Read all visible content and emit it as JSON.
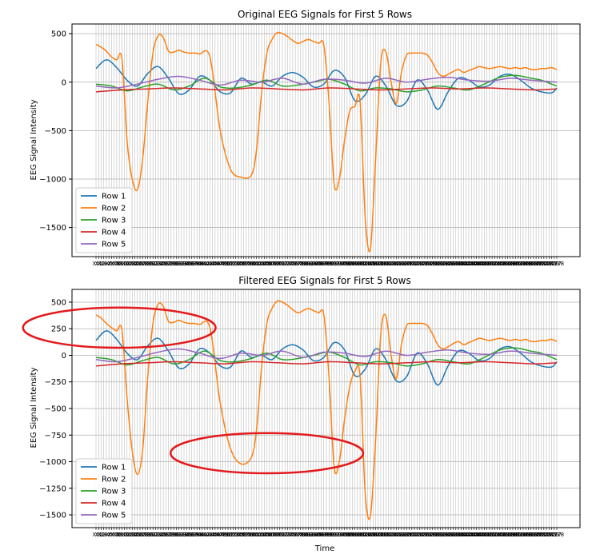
{
  "figure": {
    "colors": {
      "Row 1": "#1f77b4",
      "Row 2": "#ff7f0e",
      "Row 3": "#2ca02c",
      "Row 4": "#d62728",
      "Row 5": "#9467bd",
      "grid": "#b0b0b0",
      "annotation": "#e31a1c"
    }
  },
  "chart_data": [
    {
      "type": "line",
      "title": "Original EEG Signals for First 5 Rows",
      "xlabel": "",
      "ylabel": "EEG Signal Intensity",
      "ylim": [
        -1800,
        600
      ],
      "yticks": [
        500,
        0,
        -500,
        -1000,
        -1500
      ],
      "grid": true,
      "legend_position": "lower-left",
      "x_count": 179,
      "series": [
        {
          "name": "Row 1",
          "x": [
            0,
            4,
            8,
            12,
            16,
            20,
            24,
            28,
            32,
            36,
            40,
            44,
            48,
            52,
            56,
            60,
            64,
            68,
            72,
            76,
            80,
            84,
            88,
            92,
            96,
            100,
            104,
            108,
            112,
            116,
            120,
            124,
            128,
            132,
            136,
            140,
            144,
            148,
            152,
            156,
            160,
            164,
            168,
            172,
            176,
            178
          ],
          "values": [
            140,
            230,
            150,
            20,
            -40,
            90,
            160,
            40,
            -120,
            -80,
            60,
            20,
            -100,
            -110,
            40,
            -20,
            0,
            -40,
            60,
            100,
            50,
            -50,
            -20,
            120,
            50,
            -190,
            -130,
            60,
            -40,
            -240,
            -200,
            20,
            -80,
            -280,
            -100,
            40,
            20,
            -50,
            -30,
            60,
            80,
            20,
            -60,
            -100,
            -110,
            -60
          ]
        },
        {
          "name": "Row 2",
          "x": [
            0,
            2,
            4,
            6,
            8,
            10,
            12,
            14,
            16,
            18,
            20,
            22,
            24,
            26,
            28,
            30,
            32,
            34,
            36,
            38,
            40,
            44,
            48,
            52,
            56,
            60,
            62,
            64,
            66,
            68,
            70,
            72,
            74,
            76,
            78,
            80,
            82,
            84,
            86,
            88,
            90,
            92,
            94,
            96,
            98,
            100,
            102,
            104,
            106,
            108,
            110,
            112,
            114,
            116,
            118,
            120,
            122,
            124,
            126,
            128,
            130,
            132,
            134,
            136,
            138,
            140,
            142,
            144,
            146,
            148,
            150,
            152,
            154,
            156,
            158,
            160,
            162,
            164,
            166,
            168,
            170,
            172,
            174,
            176,
            178
          ],
          "values": [
            390,
            360,
            320,
            260,
            230,
            240,
            -600,
            -1000,
            -1110,
            -800,
            -200,
            300,
            480,
            460,
            320,
            310,
            330,
            310,
            300,
            300,
            290,
            260,
            -500,
            -900,
            -980,
            -960,
            -700,
            -100,
            300,
            440,
            510,
            500,
            470,
            430,
            400,
            420,
            440,
            420,
            400,
            380,
            -200,
            -1050,
            -1000,
            -600,
            -300,
            -250,
            -200,
            -1400,
            -1720,
            -800,
            200,
            310,
            0,
            -220,
            100,
            280,
            300,
            300,
            300,
            280,
            200,
            100,
            60,
            80,
            110,
            130,
            100,
            120,
            140,
            160,
            150,
            140,
            150,
            160,
            150,
            140,
            150,
            140,
            150,
            130,
            130,
            140,
            140,
            150,
            130
          ]
        },
        {
          "name": "Row 3",
          "x": [
            0,
            6,
            12,
            18,
            24,
            30,
            36,
            42,
            48,
            54,
            60,
            66,
            72,
            78,
            84,
            90,
            96,
            102,
            108,
            114,
            120,
            126,
            132,
            138,
            144,
            150,
            156,
            162,
            168,
            172,
            176,
            178
          ],
          "values": [
            -20,
            -40,
            -90,
            -50,
            -20,
            -80,
            -40,
            40,
            -50,
            -60,
            -30,
            20,
            -40,
            -30,
            0,
            30,
            -20,
            -90,
            -60,
            -70,
            -100,
            -80,
            -40,
            -60,
            -80,
            -20,
            50,
            70,
            40,
            20,
            -20,
            -40
          ]
        },
        {
          "name": "Row 4",
          "x": [
            0,
            10,
            20,
            30,
            40,
            50,
            60,
            70,
            80,
            90,
            100,
            110,
            120,
            130,
            140,
            150,
            160,
            170,
            178
          ],
          "values": [
            -100,
            -80,
            -70,
            -60,
            -70,
            -80,
            -60,
            -70,
            -80,
            -60,
            -70,
            -80,
            -70,
            -60,
            -70,
            -60,
            -70,
            -80,
            -70
          ]
        },
        {
          "name": "Row 5",
          "x": [
            0,
            8,
            16,
            24,
            32,
            40,
            48,
            56,
            64,
            72,
            80,
            88,
            96,
            104,
            112,
            120,
            128,
            136,
            144,
            152,
            160,
            168,
            178
          ],
          "values": [
            -40,
            -60,
            -20,
            30,
            60,
            20,
            -30,
            20,
            0,
            40,
            -20,
            30,
            20,
            -10,
            40,
            0,
            30,
            50,
            20,
            10,
            40,
            20,
            0
          ]
        }
      ]
    },
    {
      "type": "line",
      "title": "Filtered EEG Signals for First 5 Rows",
      "xlabel": "Time",
      "ylabel": "EEG Signal Intensity",
      "ylim": [
        -1620,
        620
      ],
      "yticks": [
        500,
        250,
        0,
        -250,
        -500,
        -750,
        -1000,
        -1250,
        -1500
      ],
      "grid": true,
      "legend_position": "lower-left",
      "x_count": 179,
      "series": [
        {
          "name": "Row 1",
          "x": [
            0,
            4,
            8,
            12,
            16,
            20,
            24,
            28,
            32,
            36,
            40,
            44,
            48,
            52,
            56,
            60,
            64,
            68,
            72,
            76,
            80,
            84,
            88,
            92,
            96,
            100,
            104,
            108,
            112,
            116,
            120,
            124,
            128,
            132,
            136,
            140,
            144,
            148,
            152,
            156,
            160,
            164,
            168,
            172,
            176,
            178
          ],
          "values": [
            140,
            230,
            150,
            20,
            -40,
            90,
            160,
            40,
            -120,
            -80,
            60,
            20,
            -100,
            -110,
            40,
            -20,
            0,
            -40,
            60,
            100,
            50,
            -50,
            -20,
            120,
            50,
            -190,
            -130,
            60,
            -40,
            -240,
            -200,
            20,
            -80,
            -280,
            -100,
            40,
            20,
            -50,
            -30,
            60,
            80,
            20,
            -60,
            -100,
            -110,
            -60
          ]
        },
        {
          "name": "Row 2",
          "x": [
            0,
            2,
            4,
            6,
            8,
            10,
            12,
            14,
            16,
            18,
            20,
            22,
            24,
            26,
            28,
            30,
            32,
            34,
            36,
            38,
            40,
            44,
            48,
            52,
            56,
            60,
            62,
            64,
            66,
            68,
            70,
            72,
            74,
            76,
            78,
            80,
            82,
            84,
            86,
            88,
            90,
            92,
            94,
            96,
            98,
            100,
            102,
            104,
            106,
            108,
            110,
            112,
            114,
            116,
            118,
            120,
            122,
            124,
            126,
            128,
            130,
            132,
            134,
            136,
            138,
            140,
            142,
            144,
            146,
            148,
            150,
            152,
            154,
            156,
            158,
            160,
            162,
            164,
            166,
            168,
            170,
            172,
            174,
            176,
            178
          ],
          "values": [
            380,
            350,
            300,
            260,
            230,
            240,
            -400,
            -900,
            -1120,
            -900,
            -200,
            300,
            480,
            460,
            320,
            310,
            330,
            310,
            300,
            300,
            290,
            260,
            -450,
            -880,
            -1020,
            -960,
            -700,
            -100,
            300,
            440,
            510,
            500,
            470,
            430,
            400,
            420,
            440,
            420,
            400,
            380,
            -200,
            -1050,
            -1000,
            -600,
            -300,
            -150,
            -200,
            -1300,
            -1510,
            -800,
            200,
            370,
            0,
            -220,
            100,
            280,
            300,
            300,
            300,
            280,
            200,
            100,
            60,
            80,
            110,
            130,
            100,
            120,
            140,
            160,
            150,
            140,
            150,
            160,
            150,
            140,
            150,
            140,
            150,
            130,
            130,
            140,
            140,
            150,
            130
          ]
        },
        {
          "name": "Row 3",
          "x": [
            0,
            6,
            12,
            18,
            24,
            30,
            36,
            42,
            48,
            54,
            60,
            66,
            72,
            78,
            84,
            90,
            96,
            102,
            108,
            114,
            120,
            126,
            132,
            138,
            144,
            150,
            156,
            162,
            168,
            172,
            176,
            178
          ],
          "values": [
            -20,
            -40,
            -90,
            -50,
            -20,
            -80,
            -40,
            40,
            -50,
            -60,
            -30,
            20,
            -40,
            -30,
            0,
            30,
            -20,
            -90,
            -60,
            -70,
            -100,
            -80,
            -40,
            -60,
            -80,
            -20,
            50,
            70,
            40,
            20,
            -20,
            -40
          ]
        },
        {
          "name": "Row 4",
          "x": [
            0,
            10,
            20,
            30,
            40,
            50,
            60,
            70,
            80,
            90,
            100,
            110,
            120,
            130,
            140,
            150,
            160,
            170,
            178
          ],
          "values": [
            -100,
            -80,
            -70,
            -60,
            -70,
            -80,
            -60,
            -70,
            -80,
            -60,
            -70,
            -80,
            -70,
            -60,
            -70,
            -60,
            -70,
            -80,
            -70
          ]
        },
        {
          "name": "Row 5",
          "x": [
            0,
            8,
            16,
            24,
            32,
            40,
            48,
            56,
            64,
            72,
            80,
            88,
            96,
            104,
            112,
            120,
            128,
            136,
            144,
            152,
            160,
            168,
            178
          ],
          "values": [
            -40,
            -60,
            -20,
            30,
            60,
            20,
            -30,
            20,
            0,
            40,
            -20,
            30,
            20,
            -10,
            40,
            0,
            30,
            50,
            20,
            10,
            40,
            20,
            0
          ]
        }
      ],
      "annotations": [
        {
          "shape": "ellipse",
          "color": "#e31a1c",
          "cx_data": 9,
          "cy_data": 260,
          "rx_data": 12,
          "ry_data": 180
        },
        {
          "shape": "ellipse",
          "color": "#e31a1c",
          "cx_data": 66,
          "cy_data": -920,
          "rx_data": 12,
          "ry_data": 180
        }
      ]
    }
  ]
}
